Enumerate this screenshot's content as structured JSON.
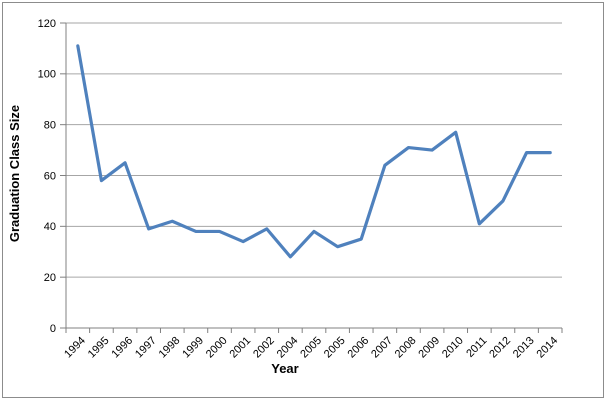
{
  "chart_data": {
    "type": "line",
    "title": "",
    "xlabel": "Year",
    "ylabel": "Graduation Class Size",
    "categories": [
      "1994",
      "1995",
      "1996",
      "1997",
      "1998",
      "1999",
      "2000",
      "2001",
      "2002",
      "2004",
      "2005",
      "2005",
      "2006",
      "2007",
      "2008",
      "2009",
      "2010",
      "2011",
      "2012",
      "2013",
      "2014"
    ],
    "values": [
      111,
      58,
      65,
      39,
      42,
      38,
      38,
      34,
      39,
      28,
      38,
      32,
      35,
      64,
      71,
      70,
      77,
      41,
      50,
      69,
      69
    ],
    "ylim": [
      0,
      120
    ],
    "y_ticks": [
      0,
      20,
      40,
      60,
      80,
      100,
      120
    ],
    "grid": "horizontal",
    "legend": "none",
    "colors": {
      "line": "#4F81BD",
      "gridline": "#A6A6A6",
      "axis": "#808080",
      "text": "#000000",
      "frame": "#8C8C8C"
    }
  }
}
